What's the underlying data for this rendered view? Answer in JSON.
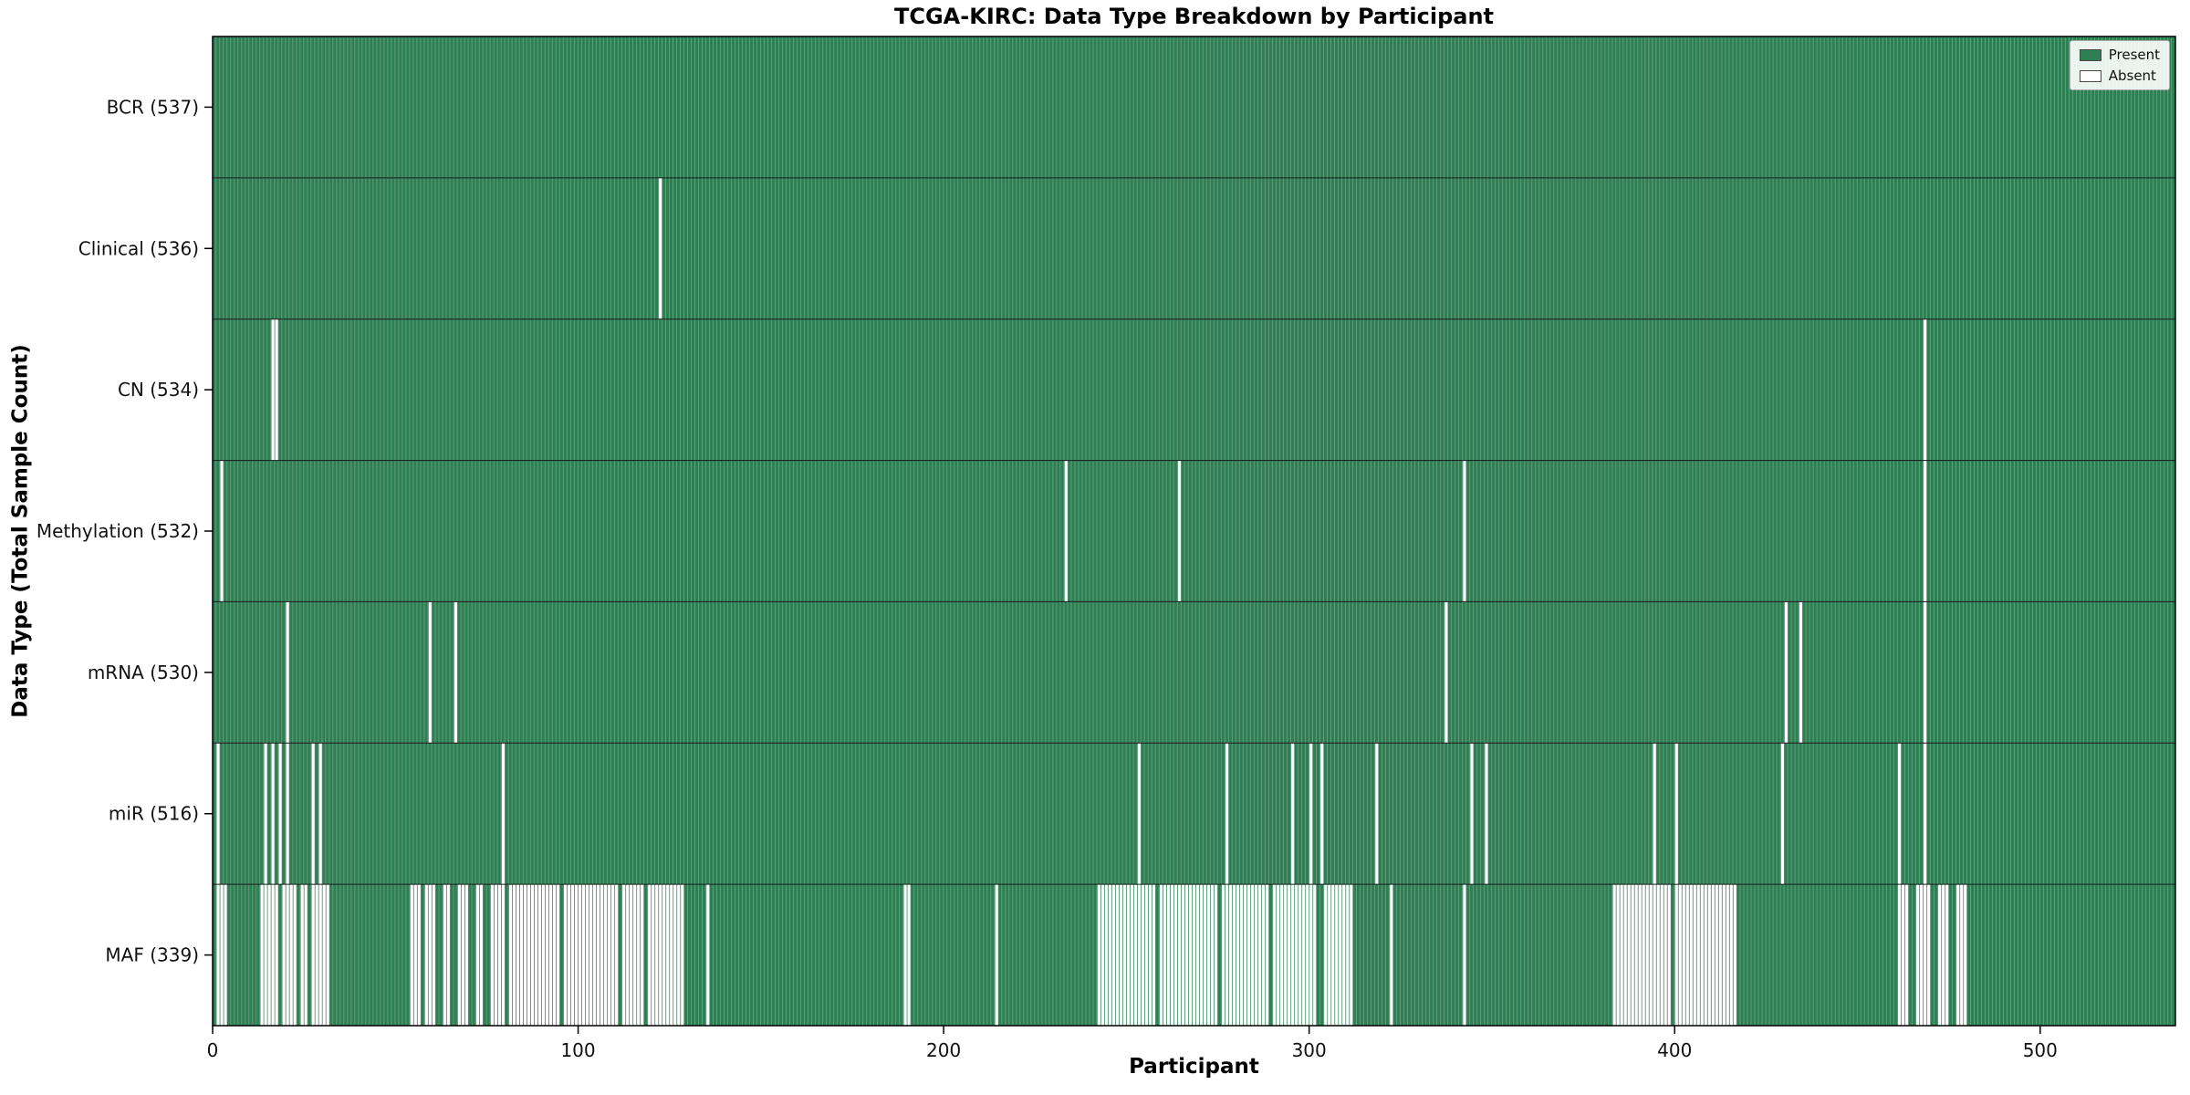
{
  "title": "TCGA-KIRC: Data Type Breakdown by Participant",
  "axes": {
    "x_label": "Participant",
    "y_label": "Data Type (Total Sample Count)"
  },
  "colors": {
    "present": "#2e8054",
    "absent": "#ffffff",
    "plot_border": "#000000",
    "row_separator": "#1a1a1a"
  },
  "chart_data": {
    "type": "heatmap",
    "title": "TCGA-KIRC: Data Type Breakdown by Participant",
    "xlabel": "Participant",
    "ylabel": "Data Type (Total Sample Count)",
    "x_min": 0,
    "x_max": 537,
    "n_participants": 537,
    "x_ticks": [
      0,
      100,
      200,
      300,
      400,
      500
    ],
    "grid": false,
    "legend_position": "upper right",
    "legend": [
      {
        "label": "Present",
        "color": "#2e8054"
      },
      {
        "label": "Absent",
        "color": "#ffffff"
      }
    ],
    "rows": [
      {
        "label": "BCR (537)",
        "data_type": "BCR",
        "total": 537,
        "absent": []
      },
      {
        "label": "Clinical (536)",
        "data_type": "Clinical",
        "total": 536,
        "absent": [
          [
            122,
            122
          ]
        ]
      },
      {
        "label": "CN (534)",
        "data_type": "CN",
        "total": 534,
        "absent": [
          [
            16,
            17
          ],
          [
            468,
            468
          ]
        ]
      },
      {
        "label": "Methylation (532)",
        "data_type": "Methylation",
        "total": 532,
        "absent": [
          [
            2,
            2
          ],
          [
            233,
            233
          ],
          [
            264,
            264
          ],
          [
            342,
            342
          ],
          [
            468,
            468
          ]
        ]
      },
      {
        "label": "mRNA (530)",
        "data_type": "mRNA",
        "total": 530,
        "absent": [
          [
            20,
            20
          ],
          [
            59,
            59
          ],
          [
            66,
            66
          ],
          [
            337,
            337
          ],
          [
            430,
            430
          ],
          [
            434,
            434
          ],
          [
            468,
            468
          ]
        ]
      },
      {
        "label": "miR (516)",
        "data_type": "miR",
        "total": 516,
        "absent": [
          [
            1,
            1
          ],
          [
            14,
            14
          ],
          [
            16,
            16
          ],
          [
            18,
            18
          ],
          [
            20,
            20
          ],
          [
            27,
            27
          ],
          [
            29,
            29
          ],
          [
            79,
            79
          ],
          [
            253,
            253
          ],
          [
            277,
            277
          ],
          [
            295,
            295
          ],
          [
            300,
            300
          ],
          [
            303,
            303
          ],
          [
            318,
            318
          ],
          [
            344,
            344
          ],
          [
            348,
            348
          ],
          [
            394,
            394
          ],
          [
            400,
            400
          ],
          [
            429,
            429
          ],
          [
            461,
            461
          ],
          [
            468,
            468
          ]
        ]
      },
      {
        "label": "MAF (339)",
        "data_type": "MAF",
        "total": 339,
        "absent": [
          [
            1,
            3
          ],
          [
            13,
            17
          ],
          [
            19,
            22
          ],
          [
            24,
            25
          ],
          [
            27,
            31
          ],
          [
            54,
            56
          ],
          [
            58,
            60
          ],
          [
            63,
            64
          ],
          [
            67,
            69
          ],
          [
            72,
            73
          ],
          [
            76,
            79
          ],
          [
            81,
            94
          ],
          [
            96,
            110
          ],
          [
            112,
            117
          ],
          [
            119,
            128
          ],
          [
            135,
            135
          ],
          [
            189,
            190
          ],
          [
            214,
            214
          ],
          [
            242,
            257
          ],
          [
            259,
            274
          ],
          [
            276,
            288
          ],
          [
            290,
            301
          ],
          [
            304,
            311
          ],
          [
            322,
            322
          ],
          [
            342,
            342
          ],
          [
            383,
            398
          ],
          [
            400,
            416
          ],
          [
            461,
            463
          ],
          [
            466,
            469
          ],
          [
            472,
            474
          ],
          [
            477,
            479
          ]
        ]
      }
    ]
  }
}
